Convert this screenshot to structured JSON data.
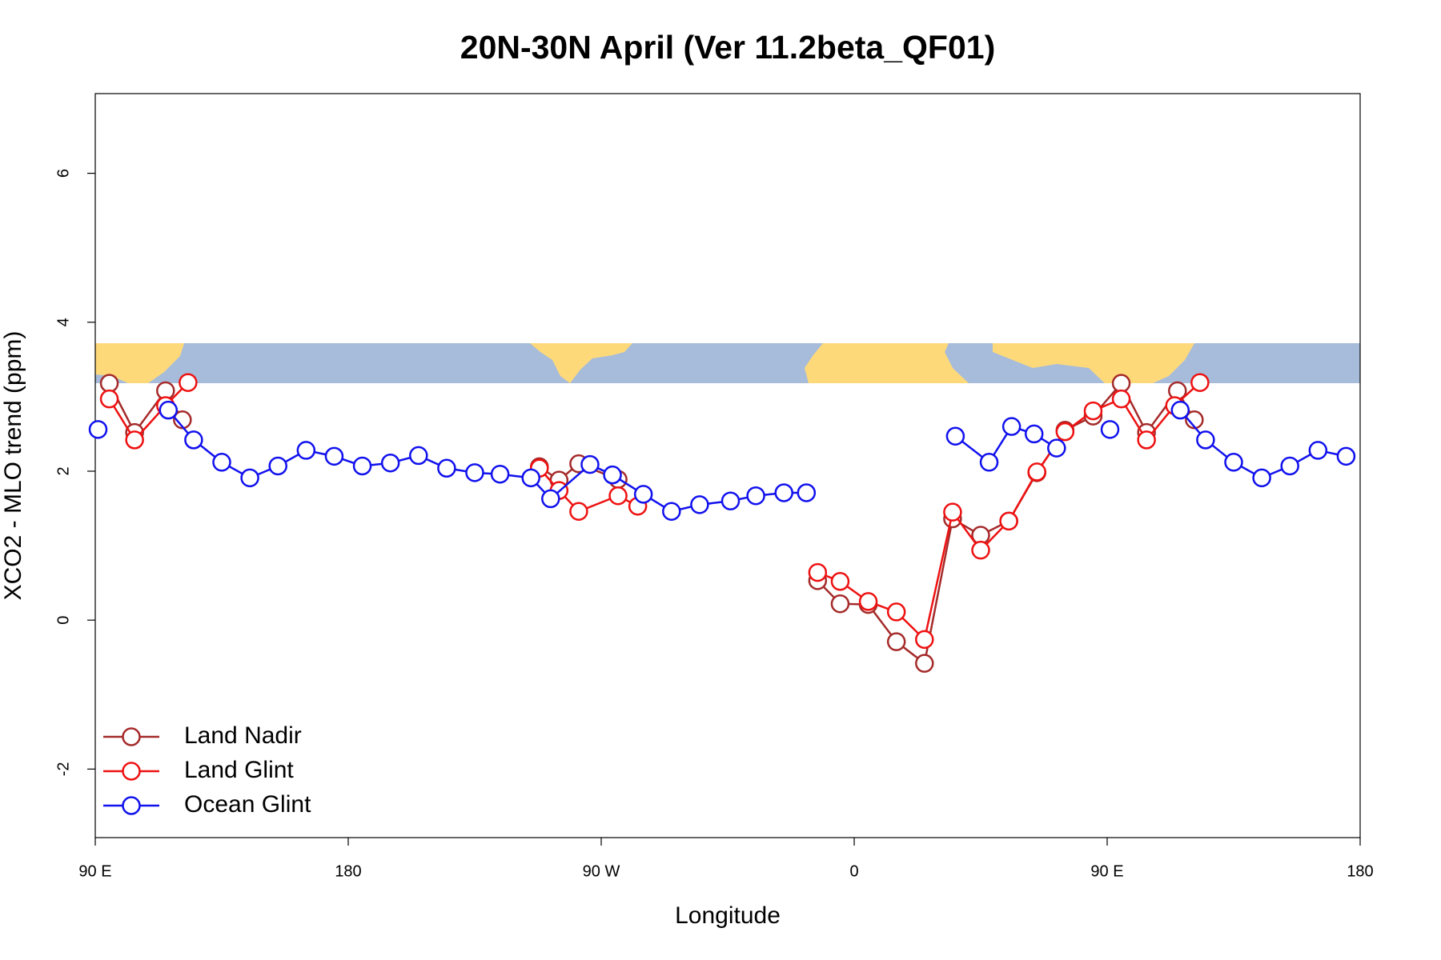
{
  "chart_data": {
    "type": "line",
    "title": "20N-30N April (Ver 11.2beta_QF01)",
    "x_label": "Longitude",
    "y_label": "XCO2 - MLO trend (ppm)",
    "xlim": [
      90,
      540
    ],
    "ylim": [
      -2.92,
      7.07
    ],
    "xticks": [
      {
        "value": 90,
        "label": "90 E"
      },
      180,
      {
        "value": 270,
        "label": "90 W"
      },
      {
        "value": 360,
        "label": "0"
      },
      {
        "value": 450,
        "label": "90 E"
      },
      {
        "value": 540,
        "label": "180"
      }
    ],
    "yticks": [
      -2,
      0,
      2,
      4,
      6
    ],
    "legend": "bottomleft",
    "series": [
      {
        "name": "Land Nadir",
        "color": "#a52a2a",
        "x": [
          95,
          104,
          115,
          121,
          215,
          248,
          255,
          262,
          276,
          300,
          347,
          355,
          365,
          375,
          385,
          395,
          405,
          415,
          425,
          435,
          445,
          455,
          464,
          475,
          481
        ],
        "values": [
          3.18,
          2.52,
          3.08,
          2.69,
          null,
          2.06,
          1.88,
          2.1,
          1.89,
          null,
          0.53,
          0.22,
          0.21,
          -0.29,
          -0.58,
          1.36,
          1.14,
          1.33,
          1.98,
          2.55,
          2.74,
          3.18,
          2.52,
          3.08,
          2.69
        ]
      },
      {
        "name": "Land Glint",
        "color": "#ee1111",
        "x": [
          95,
          104,
          115,
          123,
          215,
          248,
          255,
          262,
          276,
          283,
          300,
          347,
          355,
          365,
          375,
          385,
          395,
          405,
          415,
          425,
          435,
          445,
          455,
          464,
          474,
          483
        ],
        "values": [
          2.97,
          2.42,
          2.88,
          3.19,
          null,
          2.04,
          1.74,
          1.46,
          1.67,
          1.53,
          null,
          0.64,
          0.52,
          0.25,
          0.11,
          -0.26,
          1.45,
          0.94,
          1.33,
          1.99,
          2.53,
          2.81,
          2.97,
          2.42,
          2.88,
          3.19
        ]
      },
      {
        "name": "Ocean Glint",
        "color": "#1111ee",
        "x": [
          91,
          100,
          116,
          125,
          135,
          145,
          155,
          165,
          175,
          185,
          195,
          205,
          215,
          225,
          234,
          245,
          252,
          266,
          274,
          285,
          295,
          305,
          316,
          325,
          335,
          343,
          370,
          396,
          408,
          416,
          424,
          432,
          440,
          451,
          465,
          476,
          485,
          495,
          505,
          515,
          525,
          535
        ],
        "values": [
          2.56,
          null,
          2.82,
          2.42,
          2.12,
          1.91,
          2.07,
          2.28,
          2.2,
          2.07,
          2.11,
          2.21,
          2.04,
          1.98,
          1.96,
          1.91,
          1.63,
          2.09,
          1.95,
          1.69,
          1.46,
          1.55,
          1.6,
          1.67,
          1.71,
          1.71,
          null,
          2.47,
          2.12,
          2.6,
          2.5,
          2.31,
          null,
          2.56,
          null,
          2.82,
          2.42,
          2.12,
          1.91,
          2.07,
          2.28,
          2.2
        ]
      }
    ]
  }
}
